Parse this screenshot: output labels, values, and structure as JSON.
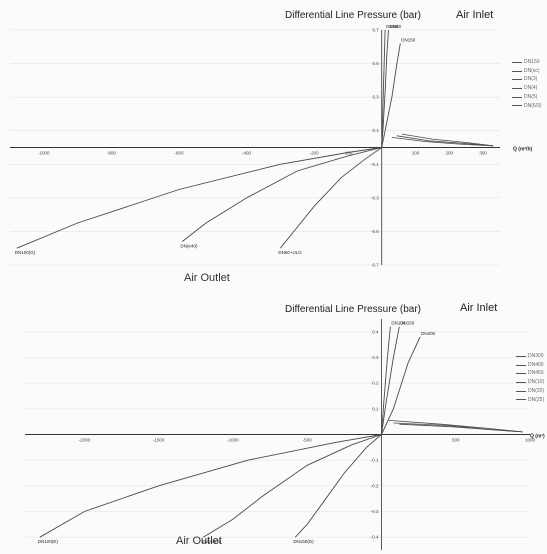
{
  "colors": {
    "curve": "#4a4a4a",
    "axis": "#333333",
    "grid": "#e4e4e4",
    "text": "#444444"
  },
  "charts": [
    {
      "title": "Differential Line Pressure (bar)",
      "inlet_label": "Air Inlet",
      "outlet_label": "Air Outlet",
      "x_axis_label": "Q (m³/h)",
      "legend": [
        "DN150",
        "DN(sc)",
        "DN(3)",
        "DN(4)",
        "DN(5)",
        "DN(6/3)"
      ]
    },
    {
      "title": "Differential Line Pressure (bar)",
      "inlet_label": "Air Inlet",
      "outlet_label": "Air Outlet",
      "x_axis_label": "Q (m³)",
      "legend": [
        "DN300",
        "DN400",
        "DN450",
        "DN(10)",
        "DN(20)",
        "DN(25)"
      ]
    }
  ],
  "chart_data": [
    {
      "type": "line",
      "title": "Differential Line Pressure (bar)",
      "xlabel": "Q (m³/h)",
      "ylabel": "",
      "xlim": [
        -1100,
        350
      ],
      "ylim": [
        -0.7,
        0.7
      ],
      "x_ticks": [
        -1000,
        -800,
        -600,
        -400,
        -200,
        -100,
        100,
        200,
        300
      ],
      "x_tick_labels": [
        "-1000",
        "-800",
        "-600",
        "-400",
        "-200",
        "-100",
        "100",
        "200",
        "300"
      ],
      "y_ticks": [
        -0.7,
        -0.5,
        -0.3,
        -0.1,
        0.1,
        0.3,
        0.5,
        0.7
      ],
      "y_tick_labels": [
        "-0.7",
        "-0.5",
        "-0.3",
        "-0.1",
        "0.1",
        "0.3",
        "0.5",
        "0.7"
      ],
      "inlet_curves": [
        {
          "label": "DN50",
          "x": [
            0,
            2,
            5,
            8,
            10
          ],
          "y": [
            0,
            0.12,
            0.35,
            0.55,
            0.7
          ]
        },
        {
          "label": "DN80",
          "x": [
            0,
            4,
            10,
            15,
            20
          ],
          "y": [
            0,
            0.12,
            0.33,
            0.55,
            0.7
          ]
        },
        {
          "label": "DN150",
          "x": [
            0,
            10,
            30,
            45,
            55
          ],
          "y": [
            0,
            0.1,
            0.3,
            0.5,
            0.62
          ]
        }
      ],
      "return_curves": [
        {
          "x": [
            60,
            150,
            250,
            330
          ],
          "y": [
            0.08,
            0.05,
            0.03,
            0.01
          ]
        },
        {
          "x": [
            45,
            140,
            240,
            330
          ],
          "y": [
            0.07,
            0.04,
            0.025,
            0.01
          ]
        },
        {
          "x": [
            30,
            130,
            230,
            330
          ],
          "y": [
            0.06,
            0.035,
            0.02,
            0.01
          ]
        }
      ],
      "outlet_curves": [
        {
          "label": "DN100(G)",
          "x": [
            0,
            -100,
            -300,
            -600,
            -900,
            -1080
          ],
          "y": [
            0,
            -0.03,
            -0.1,
            -0.25,
            -0.45,
            -0.6
          ]
        },
        {
          "label": "DN(e40)",
          "x": [
            0,
            -100,
            -250,
            -400,
            -520,
            -590
          ],
          "y": [
            0,
            -0.05,
            -0.14,
            -0.3,
            -0.45,
            -0.56
          ]
        },
        {
          "label": "DN50+ULG",
          "x": [
            0,
            -50,
            -120,
            -200,
            -260,
            -300
          ],
          "y": [
            0,
            -0.07,
            -0.18,
            -0.35,
            -0.5,
            -0.6
          ]
        }
      ]
    },
    {
      "type": "line",
      "title": "Differential Line Pressure (bar)",
      "xlabel": "Q (m³)",
      "ylabel": "",
      "xlim": [
        -2400,
        1000
      ],
      "ylim": [
        -0.45,
        0.45
      ],
      "x_ticks": [
        -2000,
        -1500,
        -1000,
        -500,
        500,
        1000
      ],
      "x_tick_labels": [
        "-2000",
        "-1500",
        "-1000",
        "-500",
        "500",
        "1000"
      ],
      "y_ticks": [
        -0.4,
        -0.3,
        -0.2,
        -0.1,
        0.1,
        0.2,
        0.3,
        0.4
      ],
      "y_tick_labels": [
        "-0.4",
        "-0.3",
        "-0.2",
        "-0.1",
        "0.1",
        "0.2",
        "0.3",
        "0.4"
      ],
      "inlet_curves": [
        {
          "label": "DN100",
          "x": [
            0,
            15,
            40,
            60
          ],
          "y": [
            0,
            0.12,
            0.3,
            0.42
          ]
        },
        {
          "label": "DN150",
          "x": [
            0,
            30,
            80,
            120
          ],
          "y": [
            0,
            0.12,
            0.3,
            0.42
          ]
        },
        {
          "label": "DN200",
          "x": [
            0,
            80,
            180,
            260
          ],
          "y": [
            0,
            0.1,
            0.28,
            0.38
          ]
        }
      ],
      "return_curves": [
        {
          "x": [
            50,
            400,
            700,
            950
          ],
          "y": [
            0.055,
            0.04,
            0.025,
            0.01
          ]
        },
        {
          "x": [
            80,
            450,
            720,
            950
          ],
          "y": [
            0.045,
            0.035,
            0.02,
            0.01
          ]
        },
        {
          "x": [
            120,
            480,
            750,
            950
          ],
          "y": [
            0.04,
            0.03,
            0.018,
            0.01
          ]
        }
      ],
      "outlet_curves": [
        {
          "label": "DN100(E)",
          "x": [
            0,
            -300,
            -900,
            -1500,
            -2000,
            -2300
          ],
          "y": [
            0,
            -0.03,
            -0.1,
            -0.2,
            -0.3,
            -0.4
          ]
        },
        {
          "label": "DN150(E)",
          "x": [
            0,
            -200,
            -500,
            -800,
            -1000,
            -1200
          ],
          "y": [
            0,
            -0.04,
            -0.12,
            -0.24,
            -0.33,
            -0.4
          ]
        },
        {
          "label": "DN150(D)",
          "x": [
            0,
            -100,
            -250,
            -400,
            -500,
            -580
          ],
          "y": [
            0,
            -0.05,
            -0.15,
            -0.27,
            -0.35,
            -0.4
          ]
        }
      ]
    }
  ]
}
